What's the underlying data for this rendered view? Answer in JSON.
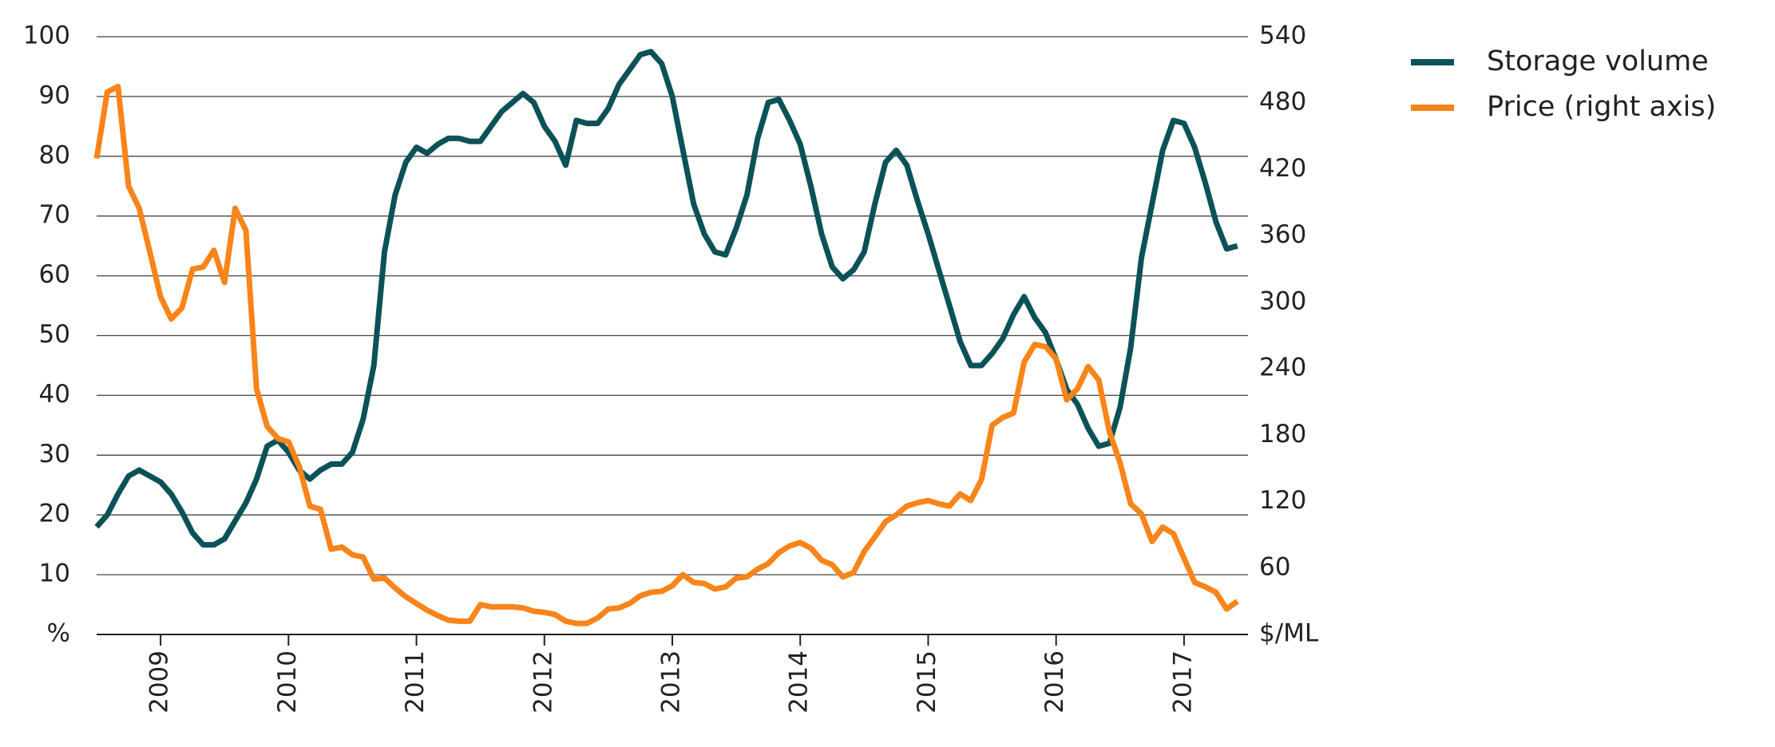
{
  "chart_data": {
    "type": "line",
    "x": [
      2008.5,
      2008.583,
      2008.667,
      2008.75,
      2008.833,
      2008.917,
      2009,
      2009.083,
      2009.167,
      2009.25,
      2009.333,
      2009.417,
      2009.5,
      2009.583,
      2009.667,
      2009.75,
      2009.833,
      2009.917,
      2010,
      2010.083,
      2010.167,
      2010.25,
      2010.333,
      2010.417,
      2010.5,
      2010.583,
      2010.667,
      2010.75,
      2010.833,
      2010.917,
      2011,
      2011.083,
      2011.167,
      2011.25,
      2011.333,
      2011.417,
      2011.5,
      2011.583,
      2011.667,
      2011.75,
      2011.833,
      2011.917,
      2012,
      2012.083,
      2012.167,
      2012.25,
      2012.333,
      2012.417,
      2012.5,
      2012.583,
      2012.667,
      2012.75,
      2012.833,
      2012.917,
      2013,
      2013.083,
      2013.167,
      2013.25,
      2013.333,
      2013.417,
      2013.5,
      2013.583,
      2013.667,
      2013.75,
      2013.833,
      2013.917,
      2014,
      2014.083,
      2014.167,
      2014.25,
      2014.333,
      2014.417,
      2014.5,
      2014.583,
      2014.667,
      2014.75,
      2014.833,
      2014.917,
      2015,
      2015.083,
      2015.167,
      2015.25,
      2015.333,
      2015.417,
      2015.5,
      2015.583,
      2015.667,
      2015.75,
      2015.833,
      2015.917,
      2016,
      2016.083,
      2016.167,
      2016.25,
      2016.333,
      2016.417,
      2016.5,
      2016.583,
      2016.667,
      2016.75,
      2016.833,
      2016.917,
      2017,
      2017.083,
      2017.167,
      2017.25,
      2017.333,
      2017.417
    ],
    "series": [
      {
        "name": "Storage volume",
        "color": "#0b5258",
        "values": [
          18,
          20,
          23.5,
          26.5,
          27.5,
          26.5,
          25.5,
          23.5,
          20.5,
          17,
          15,
          15,
          16,
          19,
          22,
          26,
          31.5,
          32.5,
          30.5,
          27.5,
          26,
          27.5,
          28.5,
          28.5,
          30.5,
          36,
          45,
          64,
          73.5,
          79,
          81.5,
          80.5,
          82,
          83,
          83,
          82.5,
          82.5,
          85,
          87.5,
          89,
          90.5,
          89,
          85,
          82.5,
          78.5,
          86,
          85.5,
          85.5,
          88,
          92,
          94.5,
          97,
          97.5,
          95.5,
          90,
          81,
          72,
          67,
          64,
          63.5,
          68,
          73.5,
          83,
          89,
          89.5,
          86,
          82,
          75,
          67,
          61.5,
          59.5,
          61,
          64,
          72,
          79,
          81,
          78.5,
          72.5,
          67,
          61,
          55,
          49,
          45,
          45,
          47,
          49.5,
          53.5,
          56.5,
          53,
          50.5,
          46,
          41,
          38.5,
          34.5,
          31.5,
          32,
          38,
          48,
          63,
          72,
          81,
          86,
          85.5,
          81.5,
          75.5,
          69,
          64.5,
          65
        ]
      },
      {
        "name": "Price (right axis)",
        "color": "#f98419",
        "axis": "y2",
        "values": [
          430,
          490,
          495,
          405,
          385,
          345,
          305,
          285,
          295,
          330,
          332,
          347,
          318,
          385,
          365,
          222,
          188,
          177,
          174,
          152,
          116,
          113,
          77,
          79,
          72,
          70,
          50,
          51,
          42,
          34,
          28,
          22,
          17,
          13,
          12,
          12,
          27,
          25,
          25,
          25,
          24,
          21,
          20,
          18,
          12,
          10,
          10,
          15,
          23,
          24,
          28,
          35,
          38,
          39,
          44,
          54,
          47,
          46,
          41,
          43,
          51,
          52,
          59,
          64,
          74,
          80,
          83,
          78,
          67,
          63,
          52,
          56,
          75,
          88,
          102,
          108,
          116,
          119,
          121,
          118,
          116,
          127,
          121,
          140,
          189,
          196,
          200,
          246,
          262,
          260,
          249,
          212,
          222,
          242,
          230,
          183,
          155,
          118,
          109,
          84,
          97,
          91,
          69,
          47,
          43,
          38,
          23,
          30
        ]
      }
    ],
    "xlim": [
      2008.5,
      2017.5
    ],
    "xticks": [
      2009,
      2010,
      2011,
      2012,
      2013,
      2014,
      2015,
      2016,
      2017
    ],
    "ylim": [
      0,
      100
    ],
    "yticks": [
      {
        "value": 0,
        "label": "%"
      },
      10,
      20,
      30,
      40,
      50,
      60,
      70,
      80,
      90,
      100
    ],
    "y2lim": [
      0,
      540
    ],
    "y2ticks": [
      {
        "value": 0,
        "label": "$/ML"
      },
      60,
      120,
      180,
      240,
      300,
      360,
      420,
      480,
      540
    ],
    "grid": true,
    "legend": "right"
  }
}
